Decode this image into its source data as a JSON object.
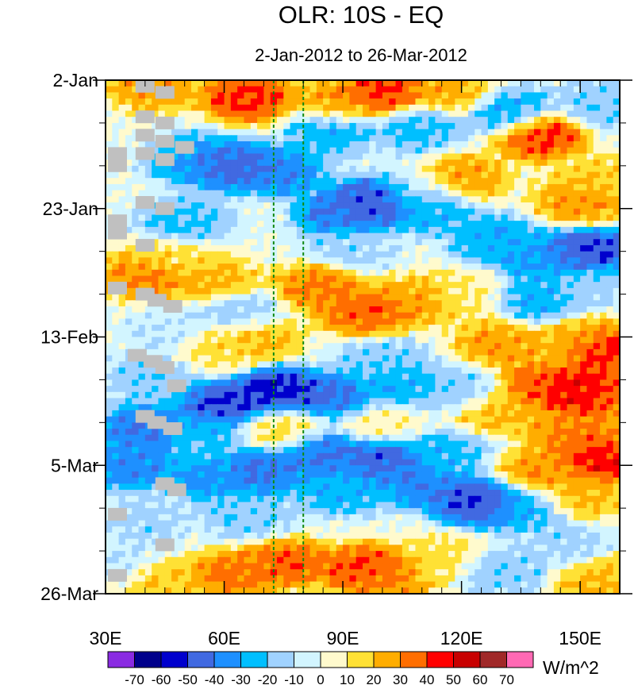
{
  "chart_data": {
    "type": "heatmap",
    "title": "OLR: 10S - EQ",
    "subtitle": "2-Jan-2012 to 26-Mar-2012",
    "xlabel": "",
    "ylabel": "",
    "x_range": [
      30,
      160
    ],
    "x_ticks": [
      {
        "value": 30,
        "label": "30E"
      },
      {
        "value": 60,
        "label": "60E"
      },
      {
        "value": 90,
        "label": "90E"
      },
      {
        "value": 120,
        "label": "120E"
      },
      {
        "value": 150,
        "label": "150E"
      }
    ],
    "y_range_days": [
      0,
      84
    ],
    "y_ticks": [
      {
        "value": 0,
        "label": "2-Jan"
      },
      {
        "value": 21,
        "label": "23-Jan"
      },
      {
        "value": 42,
        "label": "13-Feb"
      },
      {
        "value": 63,
        "label": "5-Mar"
      },
      {
        "value": 84,
        "label": "26-Mar"
      }
    ],
    "reference_lines_lon": [
      72.5,
      80
    ],
    "colorbar": {
      "unit_label": "W/m^2",
      "levels": [
        -70,
        -60,
        -50,
        -40,
        -30,
        -20,
        -10,
        0,
        10,
        20,
        30,
        40,
        50,
        60,
        70
      ],
      "colors": [
        "#8a2be2",
        "#00008b",
        "#0000cd",
        "#4169e1",
        "#1e90ff",
        "#00bfff",
        "#a0d2ff",
        "#d2f5ff",
        "#fffacd",
        "#ffe135",
        "#ffad00",
        "#ff6e00",
        "#ff0000",
        "#c80000",
        "#a02828",
        "#ff69b4"
      ]
    },
    "missing_color": "#c0c0c0",
    "field_anomalies": [
      {
        "lon": 42,
        "day": 1,
        "value": 30
      },
      {
        "lon": 66,
        "day": 3,
        "value": 45
      },
      {
        "lon": 88,
        "day": 4,
        "value": 30
      },
      {
        "lon": 100,
        "day": 2,
        "value": 45
      },
      {
        "lon": 118,
        "day": 2,
        "value": 25
      },
      {
        "lon": 87,
        "day": 8,
        "value": -30
      },
      {
        "lon": 110,
        "day": 8,
        "value": -25
      },
      {
        "lon": 132,
        "day": 5,
        "value": -30
      },
      {
        "lon": 155,
        "day": 4,
        "value": -20
      },
      {
        "lon": 140,
        "day": 9,
        "value": 45
      },
      {
        "lon": 62,
        "day": 14,
        "value": -50
      },
      {
        "lon": 74,
        "day": 15,
        "value": -40
      },
      {
        "lon": 52,
        "day": 13,
        "value": -35
      },
      {
        "lon": 98,
        "day": 20,
        "value": -55
      },
      {
        "lon": 90,
        "day": 22,
        "value": -45
      },
      {
        "lon": 112,
        "day": 21,
        "value": -30
      },
      {
        "lon": 120,
        "day": 16,
        "value": 30
      },
      {
        "lon": 150,
        "day": 20,
        "value": 30
      },
      {
        "lon": 155,
        "day": 16,
        "value": 20
      },
      {
        "lon": 110,
        "day": 18,
        "value": -10
      },
      {
        "lon": 50,
        "day": 23,
        "value": -25
      },
      {
        "lon": 128,
        "day": 26,
        "value": -30
      },
      {
        "lon": 152,
        "day": 28,
        "value": -55
      },
      {
        "lon": 140,
        "day": 29,
        "value": -35
      },
      {
        "lon": 92,
        "day": 27,
        "value": -15
      },
      {
        "lon": 40,
        "day": 32,
        "value": 35
      },
      {
        "lon": 58,
        "day": 33,
        "value": 25
      },
      {
        "lon": 46,
        "day": 29,
        "value": 15
      },
      {
        "lon": 84,
        "day": 34,
        "value": 35
      },
      {
        "lon": 96,
        "day": 38,
        "value": 40
      },
      {
        "lon": 110,
        "day": 36,
        "value": 30
      },
      {
        "lon": 120,
        "day": 35,
        "value": 10
      },
      {
        "lon": 140,
        "day": 36,
        "value": -30
      },
      {
        "lon": 152,
        "day": 34,
        "value": -15
      },
      {
        "lon": 64,
        "day": 38,
        "value": -20
      },
      {
        "lon": 46,
        "day": 41,
        "value": -10
      },
      {
        "lon": 68,
        "day": 42,
        "value": 25
      },
      {
        "lon": 58,
        "day": 44,
        "value": 15
      },
      {
        "lon": 130,
        "day": 43,
        "value": 30
      },
      {
        "lon": 150,
        "day": 42,
        "value": 25
      },
      {
        "lon": 157,
        "day": 44,
        "value": 50
      },
      {
        "lon": 100,
        "day": 46,
        "value": -20
      },
      {
        "lon": 42,
        "day": 49,
        "value": -20
      },
      {
        "lon": 74,
        "day": 51,
        "value": -60
      },
      {
        "lon": 60,
        "day": 53,
        "value": -55
      },
      {
        "lon": 88,
        "day": 52,
        "value": -45
      },
      {
        "lon": 104,
        "day": 50,
        "value": -30
      },
      {
        "lon": 120,
        "day": 51,
        "value": -20
      },
      {
        "lon": 140,
        "day": 50,
        "value": 40
      },
      {
        "lon": 150,
        "day": 51,
        "value": 55
      },
      {
        "lon": 157,
        "day": 52,
        "value": 35
      },
      {
        "lon": 128,
        "day": 54,
        "value": 25
      },
      {
        "lon": 40,
        "day": 57,
        "value": -45
      },
      {
        "lon": 55,
        "day": 58,
        "value": -25
      },
      {
        "lon": 75,
        "day": 57,
        "value": 15
      },
      {
        "lon": 100,
        "day": 56,
        "value": 10
      },
      {
        "lon": 85,
        "day": 61,
        "value": -45
      },
      {
        "lon": 100,
        "day": 62,
        "value": -50
      },
      {
        "lon": 116,
        "day": 61,
        "value": -25
      },
      {
        "lon": 36,
        "day": 63,
        "value": -40
      },
      {
        "lon": 56,
        "day": 65,
        "value": -35
      },
      {
        "lon": 70,
        "day": 64,
        "value": -45
      },
      {
        "lon": 155,
        "day": 62,
        "value": 50
      },
      {
        "lon": 140,
        "day": 64,
        "value": 30
      },
      {
        "lon": 148,
        "day": 58,
        "value": 35
      },
      {
        "lon": 90,
        "day": 67,
        "value": -30
      },
      {
        "lon": 110,
        "day": 66,
        "value": -40
      },
      {
        "lon": 124,
        "day": 69,
        "value": -55
      },
      {
        "lon": 136,
        "day": 70,
        "value": -30
      },
      {
        "lon": 66,
        "day": 71,
        "value": -20
      },
      {
        "lon": 40,
        "day": 72,
        "value": -15
      },
      {
        "lon": 150,
        "day": 68,
        "value": 25
      },
      {
        "lon": 76,
        "day": 79,
        "value": 40
      },
      {
        "lon": 62,
        "day": 81,
        "value": 35
      },
      {
        "lon": 96,
        "day": 80,
        "value": 45
      },
      {
        "lon": 102,
        "day": 82,
        "value": 30
      },
      {
        "lon": 116,
        "day": 78,
        "value": 15
      },
      {
        "lon": 130,
        "day": 80,
        "value": -20
      },
      {
        "lon": 145,
        "day": 76,
        "value": -15
      },
      {
        "lon": 155,
        "day": 82,
        "value": 25
      },
      {
        "lon": 44,
        "day": 82,
        "value": 20
      },
      {
        "lon": 33,
        "day": 79,
        "value": -10
      }
    ],
    "missing_cells": [
      {
        "lon": 40,
        "day": 1
      },
      {
        "lon": 45,
        "day": 2
      },
      {
        "lon": 40,
        "day": 6
      },
      {
        "lon": 45,
        "day": 7
      },
      {
        "lon": 40,
        "day": 9
      },
      {
        "lon": 45,
        "day": 10
      },
      {
        "lon": 50,
        "day": 11
      },
      {
        "lon": 33,
        "day": 12
      },
      {
        "lon": 40,
        "day": 12
      },
      {
        "lon": 45,
        "day": 13
      },
      {
        "lon": 33,
        "day": 14
      },
      {
        "lon": 40,
        "day": 20
      },
      {
        "lon": 45,
        "day": 21
      },
      {
        "lon": 33,
        "day": 23
      },
      {
        "lon": 33,
        "day": 25
      },
      {
        "lon": 40,
        "day": 27
      },
      {
        "lon": 33,
        "day": 34
      },
      {
        "lon": 40,
        "day": 35
      },
      {
        "lon": 43,
        "day": 36
      },
      {
        "lon": 47,
        "day": 37
      },
      {
        "lon": 38,
        "day": 45
      },
      {
        "lon": 42,
        "day": 46
      },
      {
        "lon": 45,
        "day": 47
      },
      {
        "lon": 48,
        "day": 50
      },
      {
        "lon": 40,
        "day": 55
      },
      {
        "lon": 43,
        "day": 56
      },
      {
        "lon": 47,
        "day": 57
      },
      {
        "lon": 45,
        "day": 66
      },
      {
        "lon": 48,
        "day": 67
      },
      {
        "lon": 33,
        "day": 71
      },
      {
        "lon": 45,
        "day": 76
      },
      {
        "lon": 33,
        "day": 81
      }
    ]
  }
}
